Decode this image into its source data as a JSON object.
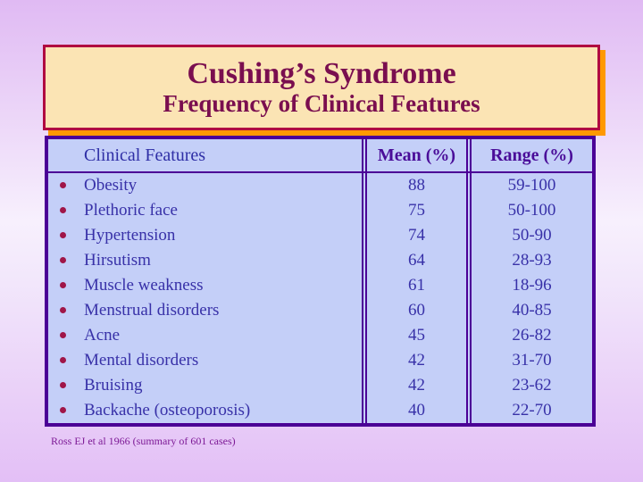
{
  "slide": {
    "title": "Cushing’s Syndrome",
    "subtitle": "Frequency of Clinical Features",
    "footer": "Ross EJ et al 1966 (summary of 601 cases)"
  },
  "table": {
    "columns": [
      "Clinical Features",
      "Mean (%)",
      "Range (%)"
    ],
    "rows": [
      {
        "feature": "Obesity",
        "mean": "88",
        "range": "59-100"
      },
      {
        "feature": "Plethoric face",
        "mean": "75",
        "range": "50-100"
      },
      {
        "feature": "Hypertension",
        "mean": "74",
        "range": "50-90"
      },
      {
        "feature": "Hirsutism",
        "mean": "64",
        "range": "28-93"
      },
      {
        "feature": "Muscle weakness",
        "mean": "61",
        "range": "18-96"
      },
      {
        "feature": "Menstrual disorders",
        "mean": "60",
        "range": "40-85"
      },
      {
        "feature": "Acne",
        "mean": "45",
        "range": "26-82"
      },
      {
        "feature": "Mental disorders",
        "mean": "42",
        "range": "31-70"
      },
      {
        "feature": "Bruising",
        "mean": "42",
        "range": "23-62"
      },
      {
        "feature": "Backache (osteoporosis)",
        "mean": "40",
        "range": "22-70"
      }
    ]
  },
  "colors": {
    "background_edge": "#e0baf3",
    "background_center": "#f7f0fd",
    "title_box_fill": "#fbe4b4",
    "title_box_border": "#b00a41",
    "title_box_shadow": "#ff9900",
    "title_text": "#7a0e4f",
    "table_fill": "#c4cff8",
    "table_border": "#4b0096",
    "body_text": "#3831a8",
    "header_bold_text": "#4a0d99",
    "bullet": "#a01648",
    "footer_text": "#7d1a96"
  }
}
